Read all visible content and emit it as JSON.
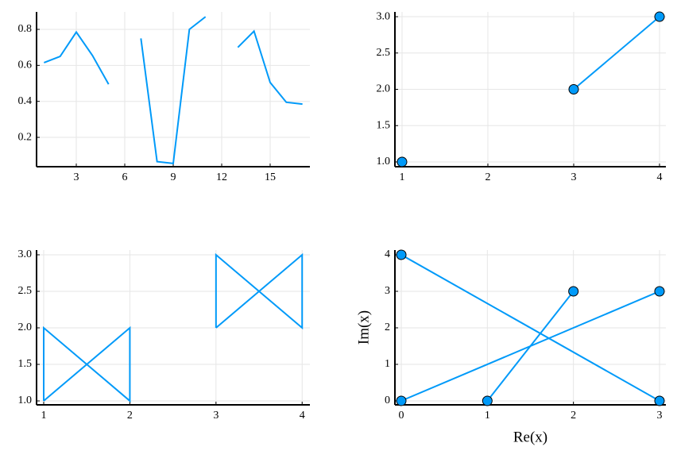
{
  "chart_data": [
    {
      "type": "line",
      "color": "#009af9",
      "marker": false,
      "grid": true,
      "x": [
        1,
        2,
        3,
        4,
        5,
        6,
        7,
        8,
        9,
        10,
        11,
        12,
        13,
        14,
        15,
        16,
        17
      ],
      "values": [
        0.615,
        0.65,
        0.785,
        0.655,
        0.495,
        null,
        0.75,
        0.065,
        0.055,
        0.8,
        0.87,
        null,
        0.7,
        0.79,
        0.505,
        0.395,
        0.385
      ],
      "xlim": [
        0.54,
        17.46
      ],
      "ylim": [
        0.037,
        0.897
      ],
      "xticks": [
        3,
        6,
        9,
        12,
        15
      ],
      "yticks": [
        0.2,
        0.4,
        0.6,
        0.8
      ]
    },
    {
      "type": "line",
      "color": "#009af9",
      "marker": true,
      "grid": true,
      "x": [
        1,
        2,
        3,
        4
      ],
      "values": [
        1,
        null,
        2,
        3
      ],
      "xlim": [
        0.917,
        4.074
      ],
      "ylim": [
        0.934,
        3.066
      ],
      "xticks": [
        1,
        2,
        3,
        4
      ],
      "yticks": [
        {
          "value": 1,
          "label": "1.0"
        },
        1.5,
        {
          "value": 2,
          "label": "2.0"
        },
        2.5,
        {
          "value": 3,
          "label": "3.0"
        }
      ]
    },
    {
      "type": "line",
      "color": "#009af9",
      "marker": false,
      "grid": true,
      "x": [
        1,
        1,
        2,
        2,
        1,
        null,
        3,
        3,
        4,
        4,
        3
      ],
      "values": [
        1,
        2,
        1,
        2,
        1,
        null,
        2,
        3,
        2,
        3,
        2
      ],
      "xlim": [
        0.917,
        4.09
      ],
      "ylim": [
        0.946,
        3.065
      ],
      "xticks": [
        1,
        2,
        3,
        4
      ],
      "yticks": [
        {
          "value": 1,
          "label": "1.0"
        },
        1.5,
        {
          "value": 2,
          "label": "2.0"
        },
        2.5,
        {
          "value": 3,
          "label": "3.0"
        }
      ]
    },
    {
      "type": "line",
      "color": "#009af9",
      "marker": true,
      "grid": true,
      "xlabel": "Re(x)",
      "ylabel": "Im(x)",
      "x": [
        0,
        3,
        null,
        1,
        2,
        null,
        0,
        3
      ],
      "values": [
        4,
        0,
        null,
        0,
        3,
        null,
        0,
        3
      ],
      "xlim": [
        -0.074,
        3.074
      ],
      "ylim": [
        -0.109,
        4.13
      ],
      "xticks": [
        0,
        1,
        2,
        3
      ],
      "yticks": [
        0,
        1,
        2,
        3,
        4
      ]
    }
  ]
}
